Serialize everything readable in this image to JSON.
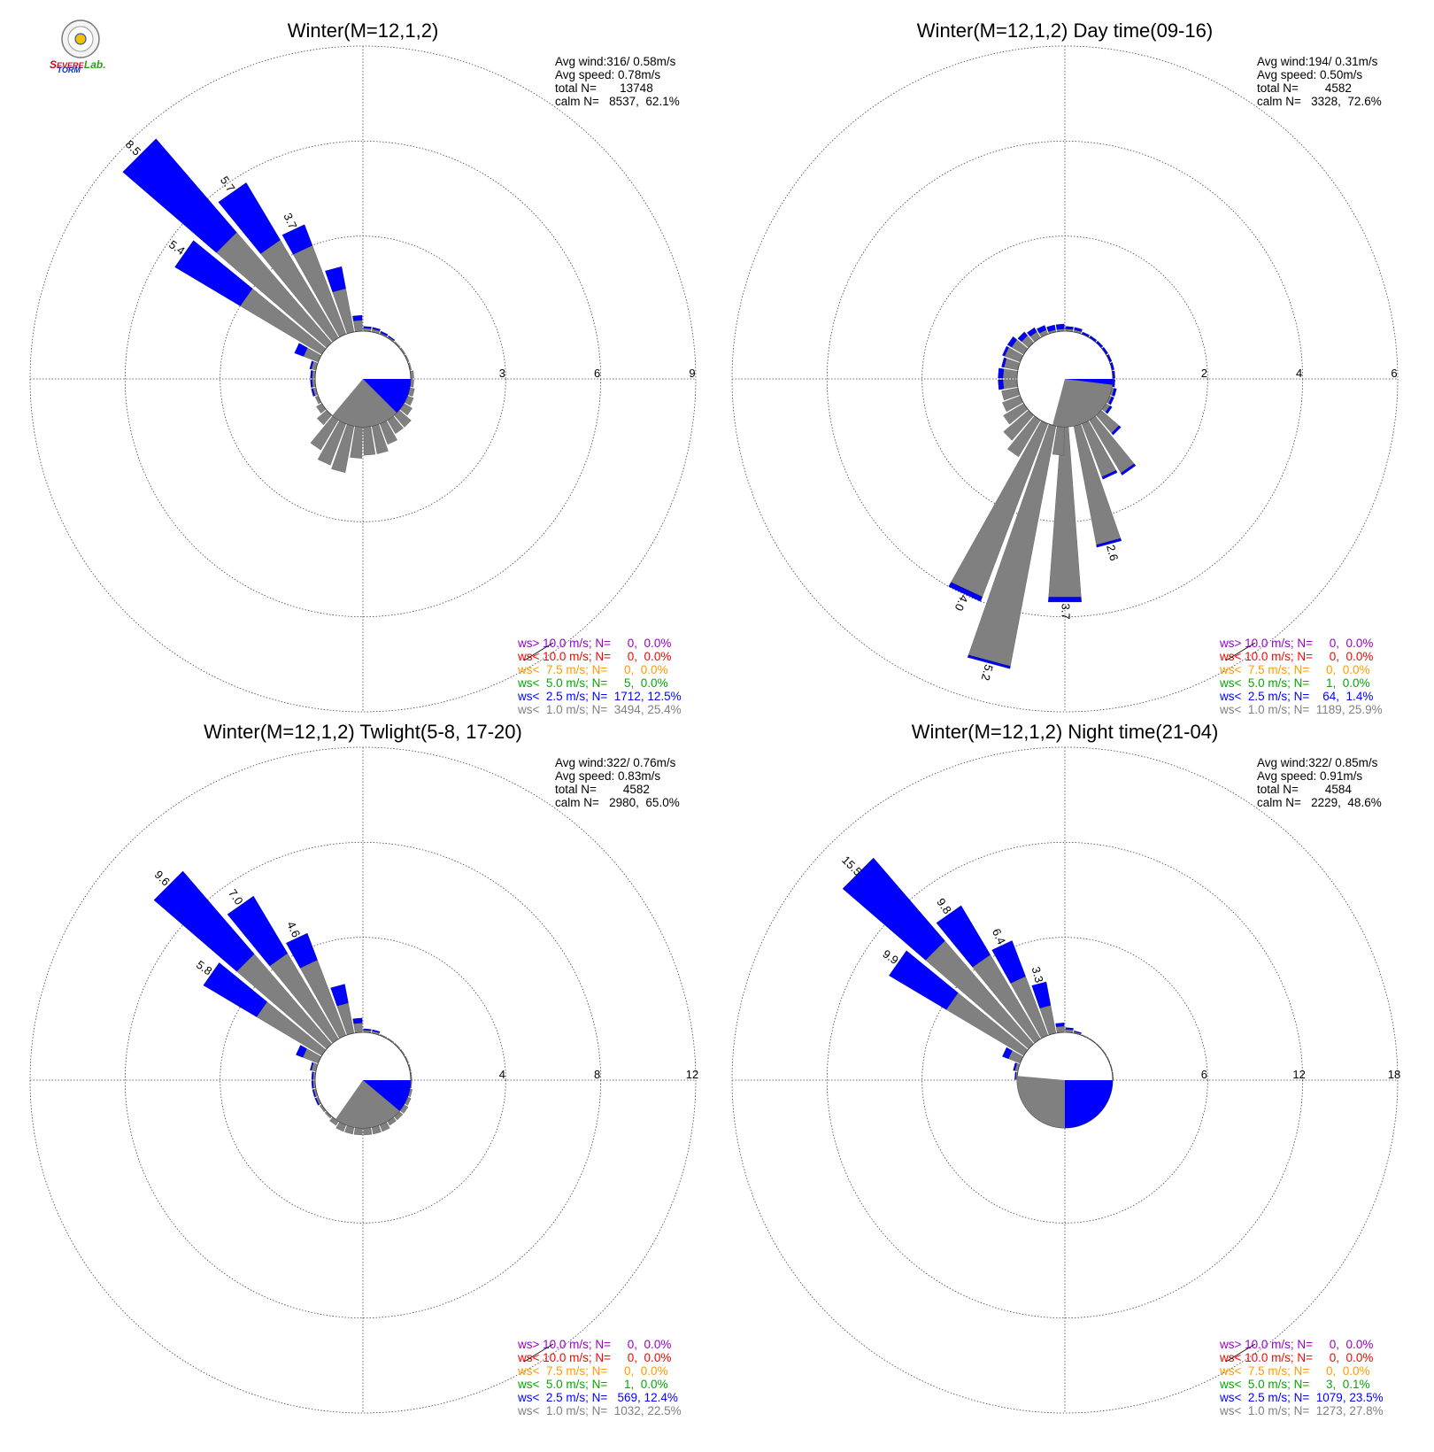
{
  "logo": {
    "parts": [
      {
        "text": "S",
        "color": "#d9001b"
      },
      {
        "text": "EVERE",
        "color": "#d9001b"
      },
      {
        "text": "TORM",
        "color": "#0033cc"
      },
      {
        "text": "Lab.",
        "color": "#2e9e1f"
      }
    ]
  },
  "colors": {
    "gray": "#808080",
    "blue": "#0000ff",
    "green": "#00aa00",
    "orange": "#ff9900",
    "red": "#ff0000",
    "purple": "#9900cc",
    "grid": "#444444"
  },
  "chart_data": [
    {
      "type": "windrose",
      "title": "Winter(M=12,1,2)",
      "stats": [
        "Avg wind:316/ 0.58m/s",
        "Avg speed: 0.78m/s",
        "total N=       13748",
        "calm N=   8537,  62.1%"
      ],
      "rmax": 9,
      "ticks": [
        "3",
        "6",
        "9"
      ],
      "calm_pie": {
        "gray_deg": [
          90,
          220
        ],
        "blue_deg": [
          90,
          135
        ]
      },
      "bars": [
        {
          "dir": 315,
          "gray": 4.6,
          "blue": 3.9,
          "label": "8.5"
        },
        {
          "dir": 325,
          "gray": 3.6,
          "blue": 2.1,
          "label": "5.7"
        },
        {
          "dir": 305,
          "gray": 3.0,
          "blue": 2.4,
          "label": "5.4"
        },
        {
          "dir": 335,
          "gray": 3.0,
          "blue": 0.7,
          "label": "3.7"
        },
        {
          "dir": 345,
          "gray": 1.4,
          "blue": 0.7,
          "label": ""
        },
        {
          "dir": 355,
          "gray": 0.35,
          "blue": 0.15,
          "label": ""
        },
        {
          "dir": 5,
          "gray": 0.1,
          "blue": 0.05,
          "label": ""
        },
        {
          "dir": 15,
          "gray": 0.1,
          "blue": 0.05,
          "label": ""
        },
        {
          "dir": 25,
          "gray": 0.05,
          "blue": 0.05,
          "label": ""
        },
        {
          "dir": 35,
          "gray": 0.05,
          "blue": 0.03,
          "label": ""
        },
        {
          "dir": 45,
          "gray": 0.05,
          "blue": 0.0,
          "label": ""
        },
        {
          "dir": 55,
          "gray": 0.05,
          "blue": 0.0,
          "label": ""
        },
        {
          "dir": 65,
          "gray": 0.05,
          "blue": 0.0,
          "label": ""
        },
        {
          "dir": 75,
          "gray": 0.05,
          "blue": 0.0,
          "label": ""
        },
        {
          "dir": 85,
          "gray": 0.1,
          "blue": 0.0,
          "label": ""
        },
        {
          "dir": 95,
          "gray": 0.1,
          "blue": 0.0,
          "label": ""
        },
        {
          "dir": 105,
          "gray": 0.15,
          "blue": 0.0,
          "label": ""
        },
        {
          "dir": 115,
          "gray": 0.2,
          "blue": 0.0,
          "label": ""
        },
        {
          "dir": 125,
          "gray": 0.3,
          "blue": 0.0,
          "label": ""
        },
        {
          "dir": 135,
          "gray": 0.5,
          "blue": 0.0,
          "label": ""
        },
        {
          "dir": 145,
          "gray": 0.5,
          "blue": 0.0,
          "label": ""
        },
        {
          "dir": 155,
          "gray": 0.7,
          "blue": 0.0,
          "label": ""
        },
        {
          "dir": 165,
          "gray": 0.9,
          "blue": 0.0,
          "label": ""
        },
        {
          "dir": 175,
          "gray": 0.9,
          "blue": 0.0,
          "label": ""
        },
        {
          "dir": 185,
          "gray": 1.0,
          "blue": 0.0,
          "label": ""
        },
        {
          "dir": 195,
          "gray": 1.5,
          "blue": 0.0,
          "label": ""
        },
        {
          "dir": 205,
          "gray": 1.4,
          "blue": 0.0,
          "label": ""
        },
        {
          "dir": 215,
          "gray": 1.1,
          "blue": 0.0,
          "label": ""
        },
        {
          "dir": 225,
          "gray": 0.4,
          "blue": 0.0,
          "label": ""
        },
        {
          "dir": 235,
          "gray": 0.2,
          "blue": 0.0,
          "label": ""
        },
        {
          "dir": 245,
          "gray": 0.1,
          "blue": 0.0,
          "label": ""
        },
        {
          "dir": 255,
          "gray": 0.1,
          "blue": 0.05,
          "label": ""
        },
        {
          "dir": 265,
          "gray": 0.1,
          "blue": 0.05,
          "label": ""
        },
        {
          "dir": 275,
          "gray": 0.1,
          "blue": 0.05,
          "label": ""
        },
        {
          "dir": 285,
          "gray": 0.15,
          "blue": 0.05,
          "label": ""
        },
        {
          "dir": 295,
          "gray": 0.5,
          "blue": 0.3,
          "label": ""
        }
      ],
      "legend": [
        {
          "text": "ws> 10.0 m/s; N=     0,  0.0%",
          "color": "purple"
        },
        {
          "text": "ws< 10.0 m/s; N=     0,  0.0%",
          "color": "red"
        },
        {
          "text": "ws<  7.5 m/s; N=     0,  0.0%",
          "color": "orange"
        },
        {
          "text": "ws<  5.0 m/s; N=     5,  0.0%",
          "color": "green"
        },
        {
          "text": "ws<  2.5 m/s; N=  1712, 12.5%",
          "color": "blue"
        },
        {
          "text": "ws<  1.0 m/s; N=  3494, 25.4%",
          "color": "gray"
        }
      ]
    },
    {
      "type": "windrose",
      "title": "Winter(M=12,1,2) Day time(09-16)",
      "stats": [
        "Avg wind:194/ 0.31m/s",
        "Avg speed: 0.50m/s",
        "total N=        4582",
        "calm N=   3328,  72.6%"
      ],
      "rmax": 6,
      "ticks": [
        "2",
        "4",
        "6"
      ],
      "calm_pie": {
        "gray_deg": [
          90,
          195
        ],
        "blue_deg": [
          90,
          97
        ]
      },
      "bars": [
        {
          "dir": 205,
          "gray": 3.9,
          "blue": 0.1,
          "label": "4.0"
        },
        {
          "dir": 195,
          "gray": 5.15,
          "blue": 0.05,
          "label": "5.2"
        },
        {
          "dir": 180,
          "gray": 3.6,
          "blue": 0.1,
          "label": "3.7"
        },
        {
          "dir": 165,
          "gray": 2.55,
          "blue": 0.05,
          "label": "2.6"
        },
        {
          "dir": 155,
          "gray": 1.2,
          "blue": 0.05,
          "label": ""
        },
        {
          "dir": 145,
          "gray": 1.3,
          "blue": 0.05,
          "label": ""
        },
        {
          "dir": 135,
          "gray": 0.5,
          "blue": 0.05,
          "label": ""
        },
        {
          "dir": 125,
          "gray": 0.1,
          "blue": 0.05,
          "label": ""
        },
        {
          "dir": 115,
          "gray": 0.05,
          "blue": 0.05,
          "label": ""
        },
        {
          "dir": 105,
          "gray": 0.05,
          "blue": 0.05,
          "label": ""
        },
        {
          "dir": 95,
          "gray": 0.0,
          "blue": 0.05,
          "label": ""
        },
        {
          "dir": 85,
          "gray": 0.0,
          "blue": 0.05,
          "label": ""
        },
        {
          "dir": 75,
          "gray": 0.0,
          "blue": 0.05,
          "label": ""
        },
        {
          "dir": 65,
          "gray": 0.0,
          "blue": 0.05,
          "label": ""
        },
        {
          "dir": 55,
          "gray": 0.0,
          "blue": 0.05,
          "label": ""
        },
        {
          "dir": 45,
          "gray": 0.0,
          "blue": 0.05,
          "label": ""
        },
        {
          "dir": 35,
          "gray": 0.0,
          "blue": 0.05,
          "label": ""
        },
        {
          "dir": 25,
          "gray": 0.0,
          "blue": 0.05,
          "label": ""
        },
        {
          "dir": 15,
          "gray": 0.05,
          "blue": 0.05,
          "label": ""
        },
        {
          "dir": 5,
          "gray": 0.05,
          "blue": 0.05,
          "label": ""
        },
        {
          "dir": 355,
          "gray": 0.05,
          "blue": 0.1,
          "label": ""
        },
        {
          "dir": 345,
          "gray": 0.05,
          "blue": 0.1,
          "label": ""
        },
        {
          "dir": 335,
          "gray": 0.1,
          "blue": 0.1,
          "label": ""
        },
        {
          "dir": 325,
          "gray": 0.15,
          "blue": 0.1,
          "label": ""
        },
        {
          "dir": 315,
          "gray": 0.2,
          "blue": 0.1,
          "label": ""
        },
        {
          "dir": 305,
          "gray": 0.3,
          "blue": 0.1,
          "label": ""
        },
        {
          "dir": 295,
          "gray": 0.35,
          "blue": 0.05,
          "label": ""
        },
        {
          "dir": 285,
          "gray": 0.3,
          "blue": 0.05,
          "label": ""
        },
        {
          "dir": 275,
          "gray": 0.3,
          "blue": 0.1,
          "label": ""
        },
        {
          "dir": 265,
          "gray": 0.3,
          "blue": 0.1,
          "label": ""
        },
        {
          "dir": 255,
          "gray": 0.35,
          "blue": 0.0,
          "label": ""
        },
        {
          "dir": 245,
          "gray": 0.4,
          "blue": 0.0,
          "label": ""
        },
        {
          "dir": 235,
          "gray": 0.5,
          "blue": 0.0,
          "label": ""
        },
        {
          "dir": 225,
          "gray": 0.7,
          "blue": 0.0,
          "label": ""
        },
        {
          "dir": 215,
          "gray": 0.9,
          "blue": 0.0,
          "label": ""
        },
        {
          "dir": 185,
          "gray": 0.6,
          "blue": 0.0,
          "label": ""
        }
      ],
      "legend": [
        {
          "text": "ws> 10.0 m/s; N=     0,  0.0%",
          "color": "purple"
        },
        {
          "text": "ws< 10.0 m/s; N=     0,  0.0%",
          "color": "red"
        },
        {
          "text": "ws<  7.5 m/s; N=     0,  0.0%",
          "color": "orange"
        },
        {
          "text": "ws<  5.0 m/s; N=     1,  0.0%",
          "color": "green"
        },
        {
          "text": "ws<  2.5 m/s; N=    64,  1.4%",
          "color": "blue"
        },
        {
          "text": "ws<  1.0 m/s; N=  1189, 25.9%",
          "color": "gray"
        }
      ]
    },
    {
      "type": "windrose",
      "title": "Winter(M=12,1,2) Twlight(5-8, 17-20)",
      "stats": [
        "Avg wind:322/ 0.76m/s",
        "Avg speed: 0.83m/s",
        "total N=        4582",
        "calm N=   2980,  65.0%"
      ],
      "rmax": 12,
      "ticks": [
        "4",
        "8",
        "12"
      ],
      "calm_pie": {
        "gray_deg": [
          90,
          215
        ],
        "blue_deg": [
          90,
          130
        ]
      },
      "bars": [
        {
          "dir": 315,
          "gray": 5.0,
          "blue": 4.6,
          "label": "9.6"
        },
        {
          "dir": 325,
          "gray": 4.2,
          "blue": 2.8,
          "label": "7.0"
        },
        {
          "dir": 305,
          "gray": 3.2,
          "blue": 2.6,
          "label": "5.8"
        },
        {
          "dir": 335,
          "gray": 3.4,
          "blue": 1.2,
          "label": "4.6"
        },
        {
          "dir": 345,
          "gray": 1.3,
          "blue": 0.8,
          "label": ""
        },
        {
          "dir": 355,
          "gray": 0.4,
          "blue": 0.2,
          "label": ""
        },
        {
          "dir": 5,
          "gray": 0.1,
          "blue": 0.05,
          "label": ""
        },
        {
          "dir": 15,
          "gray": 0.1,
          "blue": 0.05,
          "label": ""
        },
        {
          "dir": 25,
          "gray": 0.05,
          "blue": 0.0,
          "label": ""
        },
        {
          "dir": 35,
          "gray": 0.05,
          "blue": 0.0,
          "label": ""
        },
        {
          "dir": 45,
          "gray": 0.05,
          "blue": 0.0,
          "label": ""
        },
        {
          "dir": 55,
          "gray": 0.05,
          "blue": 0.0,
          "label": ""
        },
        {
          "dir": 65,
          "gray": 0.05,
          "blue": 0.0,
          "label": ""
        },
        {
          "dir": 75,
          "gray": 0.05,
          "blue": 0.0,
          "label": ""
        },
        {
          "dir": 85,
          "gray": 0.05,
          "blue": 0.0,
          "label": ""
        },
        {
          "dir": 95,
          "gray": 0.05,
          "blue": 0.0,
          "label": ""
        },
        {
          "dir": 105,
          "gray": 0.1,
          "blue": 0.0,
          "label": ""
        },
        {
          "dir": 115,
          "gray": 0.15,
          "blue": 0.0,
          "label": ""
        },
        {
          "dir": 125,
          "gray": 0.2,
          "blue": 0.0,
          "label": ""
        },
        {
          "dir": 135,
          "gray": 0.2,
          "blue": 0.0,
          "label": ""
        },
        {
          "dir": 145,
          "gray": 0.2,
          "blue": 0.0,
          "label": ""
        },
        {
          "dir": 155,
          "gray": 0.3,
          "blue": 0.0,
          "label": ""
        },
        {
          "dir": 165,
          "gray": 0.3,
          "blue": 0.0,
          "label": ""
        },
        {
          "dir": 175,
          "gray": 0.3,
          "blue": 0.0,
          "label": ""
        },
        {
          "dir": 185,
          "gray": 0.3,
          "blue": 0.0,
          "label": ""
        },
        {
          "dir": 195,
          "gray": 0.3,
          "blue": 0.0,
          "label": ""
        },
        {
          "dir": 205,
          "gray": 0.3,
          "blue": 0.0,
          "label": ""
        },
        {
          "dir": 215,
          "gray": 0.2,
          "blue": 0.0,
          "label": ""
        },
        {
          "dir": 225,
          "gray": 0.1,
          "blue": 0.0,
          "label": ""
        },
        {
          "dir": 235,
          "gray": 0.1,
          "blue": 0.0,
          "label": ""
        },
        {
          "dir": 245,
          "gray": 0.1,
          "blue": 0.05,
          "label": ""
        },
        {
          "dir": 255,
          "gray": 0.1,
          "blue": 0.05,
          "label": ""
        },
        {
          "dir": 265,
          "gray": 0.1,
          "blue": 0.05,
          "label": ""
        },
        {
          "dir": 275,
          "gray": 0.1,
          "blue": 0.05,
          "label": ""
        },
        {
          "dir": 285,
          "gray": 0.2,
          "blue": 0.05,
          "label": ""
        },
        {
          "dir": 295,
          "gray": 0.7,
          "blue": 0.3,
          "label": ""
        }
      ],
      "legend": [
        {
          "text": "ws> 10.0 m/s; N=     0,  0.0%",
          "color": "purple"
        },
        {
          "text": "ws< 10.0 m/s; N=     0,  0.0%",
          "color": "red"
        },
        {
          "text": "ws<  7.5 m/s; N=     0,  0.0%",
          "color": "orange"
        },
        {
          "text": "ws<  5.0 m/s; N=     1,  0.0%",
          "color": "green"
        },
        {
          "text": "ws<  2.5 m/s; N=   569, 12.4%",
          "color": "blue"
        },
        {
          "text": "ws<  1.0 m/s; N=  1032, 22.5%",
          "color": "gray"
        }
      ]
    },
    {
      "type": "windrose",
      "title": "Winter(M=12,1,2) Night time(21-04)",
      "stats": [
        "Avg wind:322/ 0.85m/s",
        "Avg speed: 0.91m/s",
        "total N=        4584",
        "calm N=   2229,  48.6%"
      ],
      "rmax": 18,
      "ticks": [
        "6",
        "12",
        "18"
      ],
      "calm_pie": {
        "gray_deg": [
          180,
          275
        ],
        "blue_deg": [
          90,
          180
        ]
      },
      "bars": [
        {
          "dir": 315,
          "gray": 8.6,
          "blue": 6.9,
          "label": "15.5"
        },
        {
          "dir": 325,
          "gray": 6.2,
          "blue": 3.6,
          "label": "9.8"
        },
        {
          "dir": 305,
          "gray": 5.7,
          "blue": 4.2,
          "label": "9.9"
        },
        {
          "dir": 335,
          "gray": 4.0,
          "blue": 2.4,
          "label": "6.4"
        },
        {
          "dir": 345,
          "gray": 1.8,
          "blue": 1.5,
          "label": "3.3"
        },
        {
          "dir": 355,
          "gray": 0.4,
          "blue": 0.2,
          "label": ""
        },
        {
          "dir": 5,
          "gray": 0.2,
          "blue": 0.1,
          "label": ""
        },
        {
          "dir": 15,
          "gray": 0.1,
          "blue": 0.05,
          "label": ""
        },
        {
          "dir": 25,
          "gray": 0.05,
          "blue": 0.0,
          "label": ""
        },
        {
          "dir": 35,
          "gray": 0.05,
          "blue": 0.0,
          "label": ""
        },
        {
          "dir": 45,
          "gray": 0.05,
          "blue": 0.0,
          "label": ""
        },
        {
          "dir": 55,
          "gray": 0.05,
          "blue": 0.0,
          "label": ""
        },
        {
          "dir": 65,
          "gray": 0.05,
          "blue": 0.0,
          "label": ""
        },
        {
          "dir": 75,
          "gray": 0.05,
          "blue": 0.0,
          "label": ""
        },
        {
          "dir": 85,
          "gray": 0.05,
          "blue": 0.0,
          "label": ""
        },
        {
          "dir": 295,
          "gray": 0.8,
          "blue": 0.4,
          "label": ""
        },
        {
          "dir": 285,
          "gray": 0.2,
          "blue": 0.1,
          "label": ""
        },
        {
          "dir": 275,
          "gray": 0.1,
          "blue": 0.05,
          "label": ""
        }
      ],
      "legend": [
        {
          "text": "ws> 10.0 m/s; N=     0,  0.0%",
          "color": "purple"
        },
        {
          "text": "ws< 10.0 m/s; N=     0,  0.0%",
          "color": "red"
        },
        {
          "text": "ws<  7.5 m/s; N=     0,  0.0%",
          "color": "orange"
        },
        {
          "text": "ws<  5.0 m/s; N=     3,  0.1%",
          "color": "green"
        },
        {
          "text": "ws<  2.5 m/s; N=  1079, 23.5%",
          "color": "blue"
        },
        {
          "text": "ws<  1.0 m/s; N=  1273, 27.8%",
          "color": "gray"
        }
      ]
    }
  ]
}
